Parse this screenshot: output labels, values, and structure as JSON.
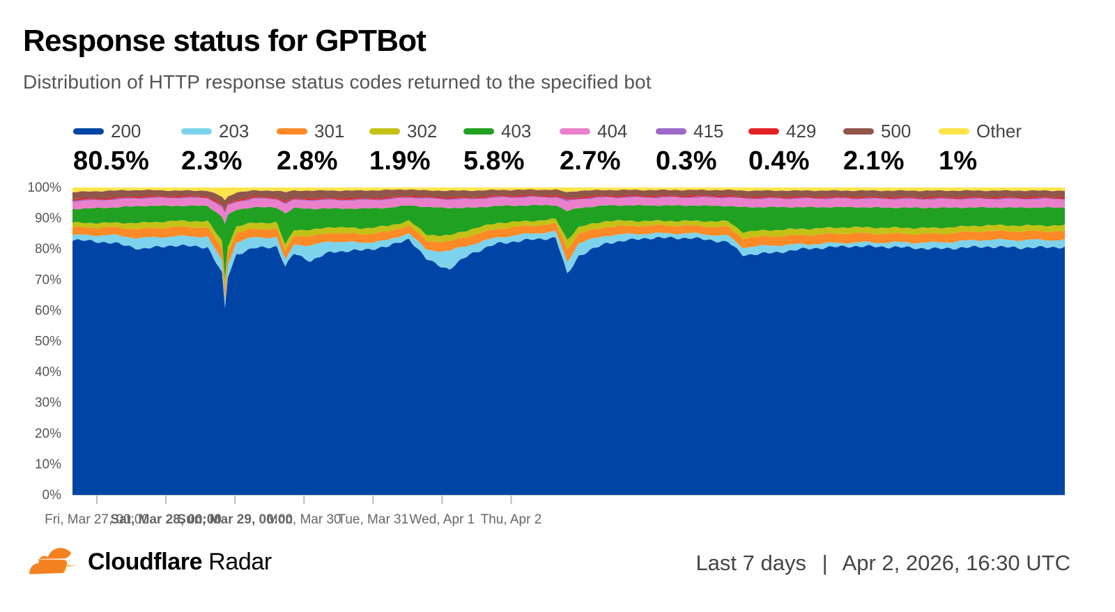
{
  "header": {
    "title": "Response status for GPTBot",
    "subtitle": "Distribution of HTTP response status codes returned to the specified bot"
  },
  "legend": [
    {
      "label": "200",
      "value": "80.5%",
      "color": "#0045a6"
    },
    {
      "label": "203",
      "value": "2.3%",
      "color": "#7dd3ec"
    },
    {
      "label": "301",
      "value": "2.8%",
      "color": "#fc8a26"
    },
    {
      "label": "302",
      "value": "1.9%",
      "color": "#c4c116"
    },
    {
      "label": "403",
      "value": "5.8%",
      "color": "#21a121"
    },
    {
      "label": "404",
      "value": "2.7%",
      "color": "#ea80cb"
    },
    {
      "label": "415",
      "value": "0.3%",
      "color": "#9c6bc8"
    },
    {
      "label": "429",
      "value": "0.4%",
      "color": "#e42124"
    },
    {
      "label": "500",
      "value": "2.1%",
      "color": "#8f5649"
    },
    {
      "label": "Other",
      "value": "1%",
      "color": "#fde44b"
    }
  ],
  "chart_data": {
    "type": "area",
    "stacked": true,
    "x_ticks": [
      "Fri, Mar 27, 00:00",
      "Sat, Mar 28, 00:00",
      "Sun, Mar 29, 00:00",
      "Mon, Mar 30",
      "Tue, Mar 31",
      "Wed, Apr 1",
      "Thu, Apr 2"
    ],
    "x_tick_bold": [
      false,
      true,
      true,
      false,
      false,
      false,
      false
    ],
    "x_range": [
      "Mar 26, 15:30",
      "Apr 2, 16:30"
    ],
    "x_step_hours": 1,
    "y_ticks": [
      "0%",
      "10%",
      "20%",
      "30%",
      "40%",
      "50%",
      "60%",
      "70%",
      "80%",
      "90%",
      "100%"
    ],
    "ylim": [
      0,
      100
    ],
    "series_keys": [
      "200",
      "203",
      "301",
      "302",
      "403",
      "404",
      "415",
      "429",
      "500",
      "Other"
    ],
    "anchors": [
      [
        0,
        [
          83,
          1.5,
          2.5,
          1.5,
          4.5,
          2.5,
          0.3,
          0.4,
          2.3,
          1.5
        ]
      ],
      [
        14,
        [
          82,
          2.5,
          2.5,
          1.5,
          5.0,
          2.5,
          0.3,
          0.4,
          2.3,
          1.0
        ]
      ],
      [
        24,
        [
          80,
          3.5,
          3.0,
          2.0,
          5.5,
          2.5,
          0.3,
          0.4,
          2.0,
          0.8
        ]
      ],
      [
        35,
        [
          82,
          3.0,
          3.0,
          2.0,
          5.0,
          2.5,
          0.3,
          0.4,
          1.8,
          1.0
        ]
      ],
      [
        47,
        [
          81,
          3.5,
          3.0,
          2.0,
          5.0,
          2.5,
          0.3,
          0.4,
          1.8,
          1.0
        ]
      ],
      [
        52,
        [
          72,
          4.0,
          4.0,
          2.5,
          8.0,
          3.0,
          0.5,
          0.5,
          2.5,
          3.0
        ]
      ],
      [
        53,
        [
          57,
          2.0,
          4.0,
          3.0,
          17.0,
          3.0,
          0.5,
          0.5,
          3.0,
          4.0
        ]
      ],
      [
        54,
        [
          71,
          4.0,
          4.0,
          2.0,
          10.0,
          3.0,
          0.5,
          0.5,
          2.0,
          3.0
        ]
      ],
      [
        57,
        [
          78,
          4.0,
          3.0,
          2.0,
          5.5,
          2.5,
          0.3,
          0.4,
          2.5,
          1.5
        ]
      ],
      [
        63,
        [
          80,
          3.5,
          2.8,
          2.0,
          5.0,
          2.7,
          0.3,
          0.4,
          2.0,
          1.0
        ]
      ],
      [
        71,
        [
          81,
          3.0,
          2.8,
          1.9,
          5.0,
          2.7,
          0.3,
          0.4,
          2.1,
          1.0
        ]
      ],
      [
        74,
        [
          72,
          2.0,
          3.0,
          2.0,
          10.0,
          3.0,
          0.3,
          0.4,
          3.0,
          1.5
        ]
      ],
      [
        77,
        [
          79,
          3.0,
          2.8,
          2.0,
          7.0,
          2.5,
          0.3,
          0.4,
          2.5,
          1.0
        ]
      ],
      [
        83,
        [
          76,
          5.0,
          3.0,
          2.0,
          7.0,
          2.7,
          0.3,
          0.4,
          2.5,
          1.0
        ]
      ],
      [
        90,
        [
          80,
          3.5,
          2.8,
          1.9,
          6.0,
          2.7,
          0.3,
          0.4,
          2.5,
          1.0
        ]
      ],
      [
        100,
        [
          80,
          2.5,
          2.8,
          1.9,
          6.5,
          2.7,
          0.3,
          0.4,
          2.5,
          1.0
        ]
      ],
      [
        110,
        [
          82,
          2.0,
          2.8,
          1.9,
          6.0,
          2.7,
          0.3,
          0.4,
          2.5,
          0.8
        ]
      ],
      [
        117,
        [
          84,
          2.0,
          2.5,
          1.5,
          5.0,
          2.5,
          0.3,
          0.4,
          2.0,
          0.6
        ]
      ],
      [
        123,
        [
          77,
          3.0,
          3.0,
          2.0,
          9.0,
          2.7,
          0.3,
          0.4,
          2.0,
          1.0
        ]
      ],
      [
        131,
        [
          73,
          6.0,
          3.0,
          2.0,
          9.0,
          2.7,
          0.3,
          0.4,
          2.2,
          1.0
        ]
      ],
      [
        138,
        [
          78,
          3.0,
          3.0,
          2.0,
          7.0,
          2.7,
          0.3,
          0.4,
          2.2,
          1.0
        ]
      ],
      [
        148,
        [
          82,
          2.0,
          2.8,
          1.9,
          5.5,
          2.7,
          0.3,
          0.4,
          1.8,
          0.8
        ]
      ],
      [
        160,
        [
          82,
          2.0,
          2.5,
          1.5,
          5.0,
          2.5,
          0.3,
          0.4,
          1.8,
          0.7
        ]
      ],
      [
        168,
        [
          83,
          2.0,
          2.5,
          1.5,
          4.5,
          2.5,
          0.3,
          0.4,
          1.8,
          0.7
        ]
      ],
      [
        172,
        [
          70,
          4.0,
          4.0,
          3.0,
          9.0,
          3.0,
          0.5,
          0.5,
          2.0,
          1.5
        ]
      ],
      [
        176,
        [
          75,
          4.0,
          3.0,
          2.0,
          6.0,
          2.7,
          0.3,
          0.4,
          2.0,
          1.0
        ]
      ],
      [
        186,
        [
          82,
          2.5,
          2.8,
          1.9,
          5.0,
          2.5,
          0.3,
          0.4,
          1.8,
          0.8
        ]
      ],
      [
        200,
        [
          83,
          1.5,
          2.5,
          1.5,
          5.0,
          2.5,
          0.3,
          0.4,
          1.8,
          0.8
        ]
      ],
      [
        215,
        [
          83,
          1.5,
          2.5,
          1.5,
          5.0,
          2.5,
          0.3,
          0.4,
          1.8,
          0.8
        ]
      ],
      [
        228,
        [
          82,
          2.0,
          2.8,
          1.9,
          5.0,
          2.7,
          0.3,
          0.4,
          1.8,
          0.8
        ]
      ],
      [
        233,
        [
          78,
          2.5,
          3.0,
          2.0,
          8.0,
          2.7,
          0.3,
          0.4,
          2.0,
          1.0
        ]
      ],
      [
        243,
        [
          79,
          2.5,
          3.0,
          2.0,
          7.5,
          2.7,
          0.3,
          0.4,
          2.0,
          1.0
        ]
      ],
      [
        255,
        [
          80,
          1.5,
          3.0,
          2.0,
          7.0,
          2.7,
          0.3,
          0.4,
          2.0,
          1.0
        ]
      ],
      [
        270,
        [
          81,
          1.2,
          3.0,
          2.0,
          6.5,
          2.7,
          0.3,
          0.4,
          2.0,
          1.0
        ]
      ],
      [
        285,
        [
          80,
          1.5,
          2.8,
          1.9,
          6.5,
          2.7,
          0.3,
          0.4,
          2.1,
          1.0
        ]
      ],
      [
        300,
        [
          79,
          2.0,
          2.8,
          1.9,
          6.5,
          2.7,
          0.3,
          0.4,
          2.1,
          1.0
        ]
      ],
      [
        318,
        [
          81,
          2.3,
          2.8,
          1.9,
          5.8,
          2.7,
          0.3,
          0.4,
          2.1,
          1.0
        ]
      ],
      [
        330,
        [
          80,
          2.5,
          2.8,
          1.9,
          5.8,
          2.7,
          0.3,
          0.4,
          2.1,
          1.0
        ]
      ],
      [
        345,
        [
          80.5,
          2.3,
          2.8,
          1.9,
          5.8,
          2.7,
          0.3,
          0.4,
          2.1,
          1.0
        ]
      ]
    ]
  },
  "brand": {
    "name": "Cloudflare",
    "product": "Radar"
  },
  "footer": {
    "range": "Last 7 days",
    "separator": "|",
    "timestamp": "Apr 2, 2026, 16:30 UTC"
  }
}
